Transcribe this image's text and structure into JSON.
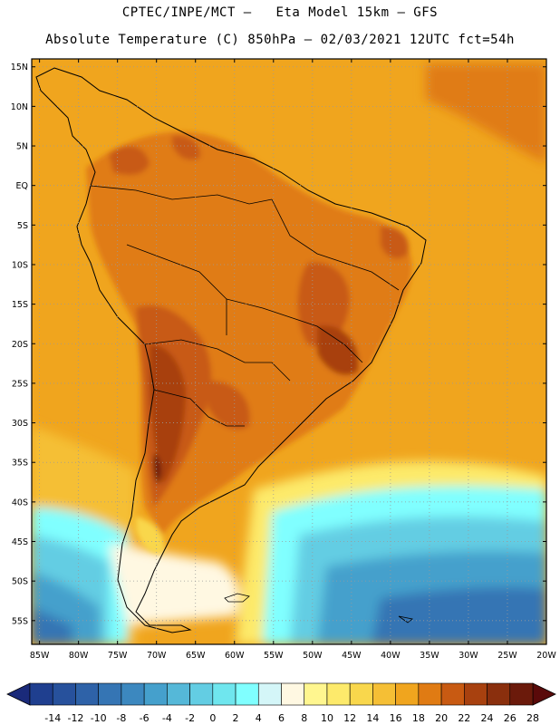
{
  "header": {
    "title_line1": "CPTEC/INPE/MCT –   Eta Model 15km – GFS",
    "title_line2": "Absolute Temperature (C) 850hPa – 02/03/2021 12UTC fct=54h"
  },
  "map": {
    "region": "South America",
    "lat_labels": [
      "15N",
      "10N",
      "5N",
      "EQ",
      "5S",
      "10S",
      "15S",
      "20S",
      "25S",
      "30S",
      "35S",
      "40S",
      "45S",
      "50S",
      "55S"
    ],
    "lon_labels": [
      "85W",
      "80W",
      "75W",
      "70W",
      "65W",
      "60W",
      "55W",
      "50W",
      "45W",
      "40W",
      "35W",
      "30W",
      "25W",
      "20W"
    ],
    "lat_range": [
      -58,
      16
    ],
    "lon_range": [
      -86,
      -20
    ],
    "gridlines": "dotted"
  },
  "colorbar": {
    "labels": [
      "-14",
      "-12",
      "-10",
      "-8",
      "-6",
      "-4",
      "-2",
      "0",
      "2",
      "4",
      "6",
      "8",
      "10",
      "12",
      "14",
      "16",
      "18",
      "20",
      "22",
      "24",
      "26",
      "28"
    ],
    "colors": [
      "#1f3f8f",
      "#27519c",
      "#2e62a8",
      "#3575b4",
      "#3c88bf",
      "#45a0cc",
      "#55b8d8",
      "#63cde3",
      "#6fe6ee",
      "#80ffff",
      "#d4f6f8",
      "#fff8e2",
      "#fff68f",
      "#fdea6b",
      "#f9d74c",
      "#f5bf35",
      "#f0a51e",
      "#e07b13",
      "#c85a12",
      "#a8410f",
      "#8a2f0d",
      "#6b1a0b"
    ],
    "min_arrow_color": "#1a2a7a",
    "max_arrow_color": "#5a0a0a"
  }
}
